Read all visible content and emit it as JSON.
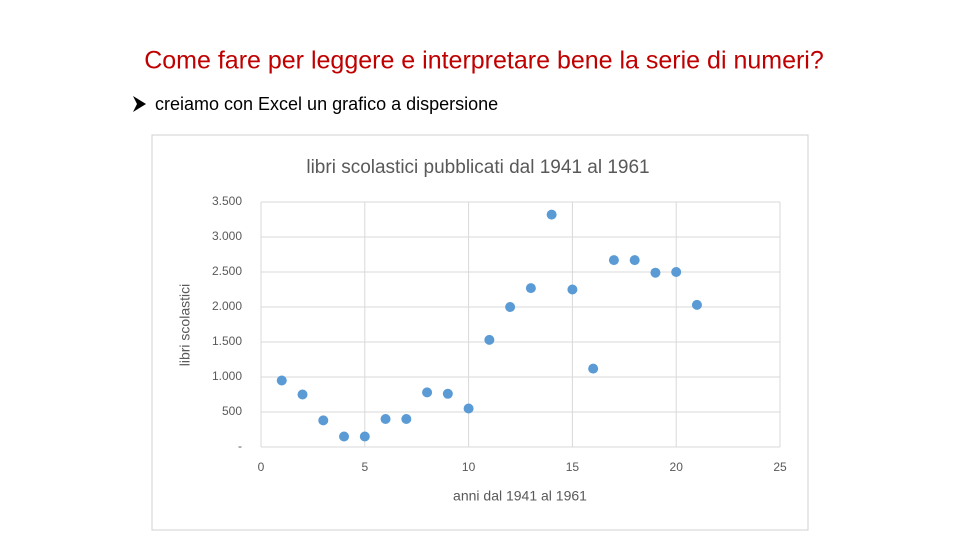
{
  "title": "Come fare per leggere e interpretare bene la serie di numeri?",
  "bullet": "creiamo con Excel un grafico a dispersione",
  "chart_data": {
    "type": "scatter",
    "title": "libri scolastici pubblicati dal 1941 al 1961",
    "x_label": "anni dal 1941 al 1961",
    "y_label": "libri scolastici",
    "x": [
      1,
      2,
      3,
      4,
      5,
      6,
      7,
      8,
      9,
      10,
      11,
      12,
      13,
      14,
      15,
      16,
      17,
      18,
      19,
      20,
      21
    ],
    "series": [
      {
        "color": "#5b9bd5",
        "values": [
          950,
          750,
          380,
          150,
          150,
          400,
          400,
          780,
          760,
          550,
          1530,
          2000,
          2270,
          3320,
          2250,
          1120,
          2670,
          2670,
          2490,
          2500,
          2030
        ]
      }
    ],
    "xlim": [
      0,
      25
    ],
    "xticks": [
      0,
      5,
      10,
      15,
      20,
      25
    ],
    "ylim": [
      0,
      3500
    ],
    "yticks": [
      {
        "value": 0,
        "label": "-"
      },
      500,
      {
        "value": 1000,
        "label": "1.000"
      },
      {
        "value": 1500,
        "label": "1.500"
      },
      {
        "value": 2000,
        "label": "2.000"
      },
      {
        "value": 2500,
        "label": "2.500"
      },
      {
        "value": 3000,
        "label": "3.000"
      },
      {
        "value": 3500,
        "label": "3.500"
      }
    ],
    "grid": true
  }
}
